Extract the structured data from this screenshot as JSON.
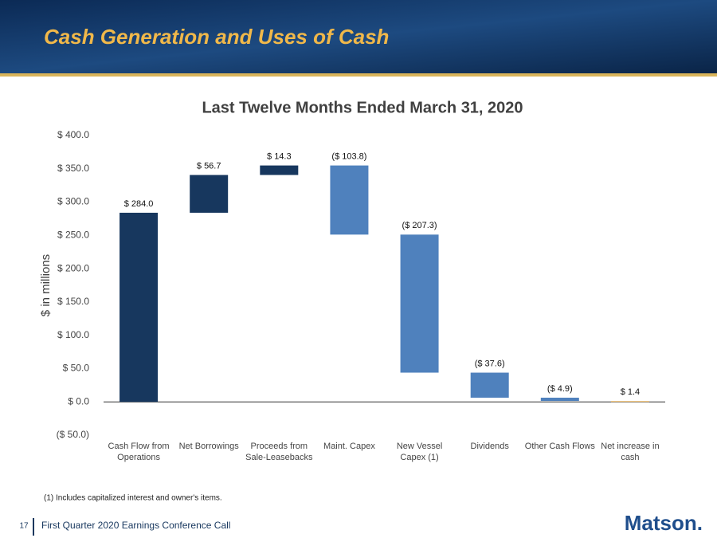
{
  "header": {
    "title": "Cash Generation and Uses of Cash"
  },
  "chart_data": {
    "type": "waterfall",
    "title": "Last Twelve Months Ended March 31, 2020",
    "y_label": "$ in millions",
    "categories": [
      "Cash Flow from Operations",
      "Net Borrowings",
      "Proceeds from Sale-Leasebacks",
      "Maint. Capex",
      "New Vessel Capex (1)",
      "Dividends",
      "Other Cash Flows",
      "Net increase in cash"
    ],
    "values": [
      284.0,
      56.7,
      14.3,
      -103.8,
      -207.3,
      -37.6,
      -4.9,
      1.4
    ],
    "value_labels": [
      "$ 284.0",
      "$ 56.7",
      "$ 14.3",
      "($ 103.8)",
      "($ 207.3)",
      "($ 37.6)",
      "($ 4.9)",
      "$ 1.4"
    ],
    "colors": [
      "#17375e",
      "#17375e",
      "#17375e",
      "#4f81bd",
      "#4f81bd",
      "#4f81bd",
      "#4f81bd",
      "#f5c77e"
    ],
    "total_last": true,
    "ylim": [
      -50,
      400
    ],
    "yticks": [
      {
        "value": -50,
        "label": "($ 50.0)"
      },
      {
        "value": 0,
        "label": "$ 0.0"
      },
      {
        "value": 50,
        "label": "$ 50.0"
      },
      {
        "value": 100,
        "label": "$ 100.0"
      },
      {
        "value": 150,
        "label": "$ 150.0"
      },
      {
        "value": 200,
        "label": "$ 200.0"
      },
      {
        "value": 250,
        "label": "$ 250.0"
      },
      {
        "value": 300,
        "label": "$ 300.0"
      },
      {
        "value": 350,
        "label": "$ 350.0"
      },
      {
        "value": 400,
        "label": "$ 400.0"
      }
    ],
    "grid": false
  },
  "footnote": "(1) Includes capitalized interest and owner's items.",
  "footer": {
    "page_number": "17",
    "text": "First Quarter 2020 Earnings Conference Call",
    "logo": "Matson."
  }
}
